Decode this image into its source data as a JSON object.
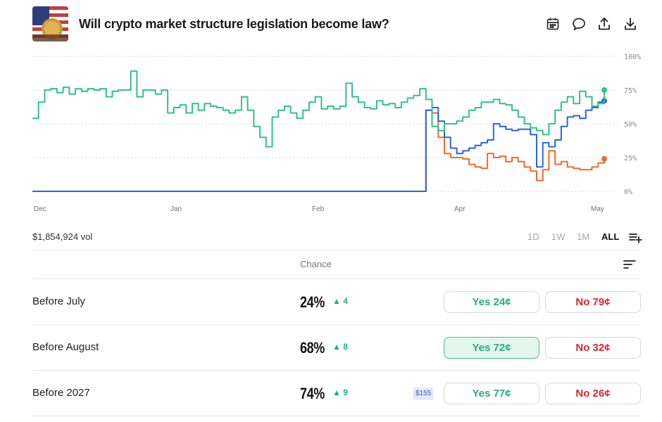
{
  "header": {
    "title": "Will crypto market structure legislation become law?",
    "icons": [
      "calendar-icon",
      "comment-icon",
      "share-icon",
      "download-icon"
    ]
  },
  "chart_data": {
    "type": "line",
    "y_ticks": [
      "100%",
      "75%",
      "50%",
      "25%",
      "0%"
    ],
    "x_ticks": [
      "Dec",
      "Jan",
      "Feb",
      "Apr",
      "May"
    ],
    "ylim": [
      0,
      100
    ],
    "grid": true,
    "series": [
      {
        "color": "#2ec28c",
        "values": [
          54,
          66,
          75,
          76,
          73,
          77,
          72,
          76,
          74,
          76,
          75,
          76,
          70,
          74,
          75,
          75,
          89,
          70,
          75,
          75,
          72,
          75,
          58,
          62,
          64,
          58,
          65,
          60,
          65,
          63,
          62,
          60,
          58,
          60,
          70,
          60,
          48,
          40,
          33,
          55,
          60,
          63,
          58,
          54,
          60,
          66,
          70,
          61,
          63,
          61,
          63,
          80,
          70,
          66,
          62,
          61,
          67,
          64,
          65,
          62,
          66,
          69,
          71,
          76,
          68,
          48,
          45,
          50,
          50,
          52,
          55,
          60,
          62,
          66,
          66,
          68,
          65,
          64,
          60,
          55,
          50,
          47,
          45,
          42,
          50,
          60,
          66,
          70,
          65,
          74,
          70,
          63,
          65,
          75
        ]
      },
      {
        "color": "#2a64e0",
        "values": [
          0,
          0,
          0,
          0,
          0,
          0,
          0,
          0,
          0,
          0,
          0,
          0,
          0,
          0,
          0,
          0,
          0,
          0,
          0,
          0,
          0,
          0,
          0,
          0,
          0,
          0,
          0,
          0,
          0,
          0,
          0,
          0,
          0,
          0,
          0,
          0,
          0,
          0,
          0,
          0,
          0,
          0,
          0,
          0,
          0,
          0,
          0,
          0,
          0,
          0,
          0,
          0,
          0,
          0,
          0,
          0,
          0,
          0,
          0,
          0,
          0,
          0,
          0,
          0,
          60,
          62,
          52,
          40,
          32,
          28,
          30,
          32,
          34,
          36,
          38,
          50,
          48,
          46,
          45,
          46,
          46,
          42,
          18,
          36,
          33,
          38,
          48,
          55,
          56,
          54,
          60,
          62,
          66,
          67
        ]
      },
      {
        "color": "#f26a24",
        "values": [
          0,
          0,
          0,
          0,
          0,
          0,
          0,
          0,
          0,
          0,
          0,
          0,
          0,
          0,
          0,
          0,
          0,
          0,
          0,
          0,
          0,
          0,
          0,
          0,
          0,
          0,
          0,
          0,
          0,
          0,
          0,
          0,
          0,
          0,
          0,
          0,
          0,
          0,
          0,
          0,
          0,
          0,
          0,
          0,
          0,
          0,
          0,
          0,
          0,
          0,
          0,
          0,
          0,
          0,
          0,
          0,
          0,
          0,
          0,
          0,
          0,
          0,
          0,
          0,
          60,
          58,
          40,
          28,
          25,
          25,
          24,
          20,
          18,
          17,
          28,
          25,
          26,
          22,
          25,
          22,
          18,
          15,
          8,
          16,
          30,
          20,
          22,
          18,
          17,
          16,
          16,
          18,
          21,
          24
        ]
      }
    ]
  },
  "volume": "$1,854,924 vol",
  "ranges": [
    "1D",
    "1W",
    "1M",
    "ALL"
  ],
  "table_header": "Chance",
  "rows": [
    {
      "label": "Before July",
      "pct": "24%",
      "change": "▲ 4",
      "yes": "Yes 24¢",
      "no": "No 79¢"
    },
    {
      "label": "Before August",
      "pct": "68%",
      "change": "▲ 8",
      "yes": "Yes 72¢",
      "no": "No 32¢"
    },
    {
      "label": "Before 2027",
      "pct": "74%",
      "change": "▲ 9",
      "badge": "$155",
      "yes": "Yes 77¢",
      "no": "No 26¢"
    }
  ]
}
